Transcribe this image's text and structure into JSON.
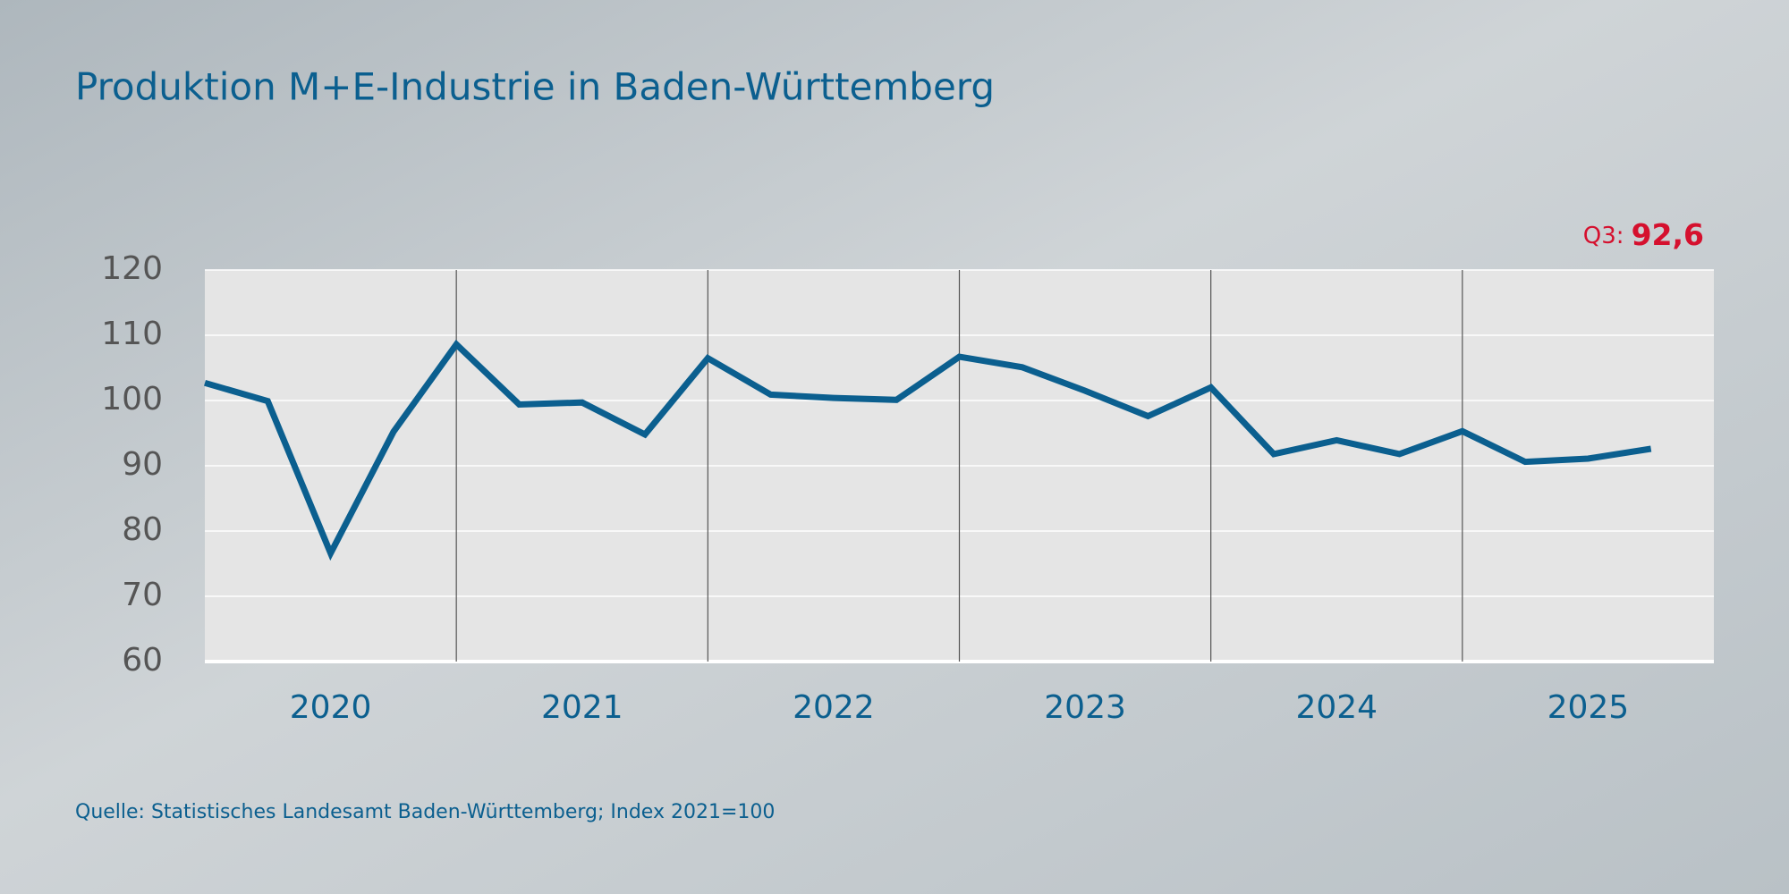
{
  "chart_data": {
    "type": "line",
    "title": "Produktion M+E-Industrie in Baden-Württemberg",
    "source": "Quelle: Statistisches Landesamt Baden-Württemberg; Index 2021=100",
    "categories": [
      "2020",
      "2021",
      "2022",
      "2023",
      "2024",
      "2025"
    ],
    "x": [
      2020,
      2020.25,
      2020.5,
      2020.75,
      2021,
      2021.25,
      2021.5,
      2021.75,
      2022,
      2022.25,
      2022.5,
      2022.75,
      2023,
      2023.25,
      2023.5,
      2023.75,
      2024,
      2024.25,
      2024.5,
      2024.75,
      2025,
      2025.25,
      2025.5,
      2025.75
    ],
    "series": [
      {
        "name": "Produktion",
        "color": "#0b5f8f",
        "values": [
          102.7,
          99.9,
          76.6,
          95.2,
          108.6,
          99.4,
          99.7,
          94.8,
          106.5,
          100.9,
          100.4,
          100.1,
          106.7,
          105.1,
          101.5,
          97.6,
          102.0,
          91.8,
          93.9,
          91.8,
          95.3,
          90.6,
          91.1,
          92.6
        ]
      }
    ],
    "annotation": {
      "prefix": "Q3:",
      "text": "92,6"
    },
    "xlim": [
      2020,
      2026
    ],
    "xticks": [
      2021,
      2022,
      2023,
      2024,
      2025
    ],
    "ylim": [
      60,
      120
    ],
    "yticks": [
      60,
      70,
      80,
      90,
      100,
      110,
      120
    ],
    "grid": true
  }
}
